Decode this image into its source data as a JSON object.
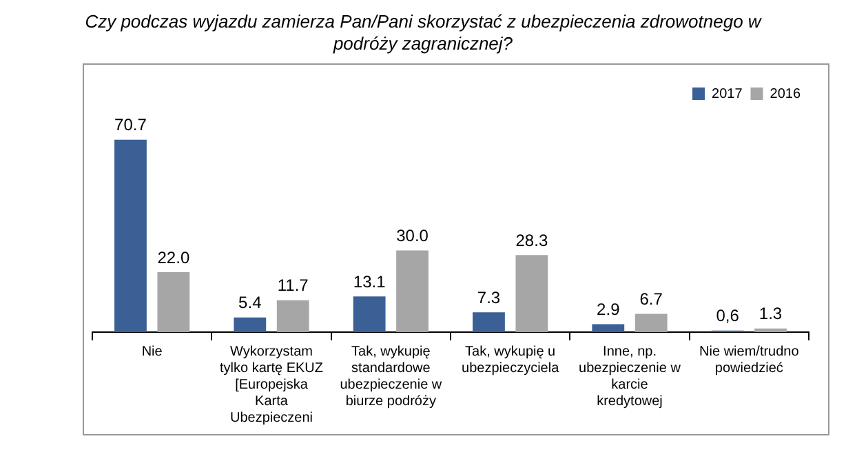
{
  "chart_data": {
    "type": "bar",
    "title": "Czy podczas wyjazdu zamierza Pan/Pani skorzystać z ubezpieczenia zdrowotnego w podróży zagranicznej?",
    "categories": [
      "Nie",
      "Wykorzystam tylko kartę EKUZ [Europejska Karta Ubezpieczeni",
      "Tak, wykupię standardowe ubezpieczenie w biurze podróży",
      "Tak, wykupię u ubezpieczyciela",
      "Inne, np. ubezpieczenie w karcie kredytowej",
      "Nie wiem/trudno powiedzieć"
    ],
    "series": [
      {
        "name": "2017",
        "color": "#3b6096",
        "values": [
          70.7,
          5.4,
          13.1,
          7.3,
          2.9,
          0.6
        ],
        "value_labels": [
          "70.7",
          "5.4",
          "13.1",
          "7.3",
          "2.9",
          "0,6"
        ]
      },
      {
        "name": "2016",
        "color": "#a6a6a6",
        "values": [
          22.0,
          11.7,
          30.0,
          28.3,
          6.7,
          1.3
        ],
        "value_labels": [
          "22.0",
          "11.7",
          "30.0",
          "28.3",
          "6.7",
          "1.3"
        ]
      }
    ],
    "legend": "top right",
    "grid": false
  }
}
